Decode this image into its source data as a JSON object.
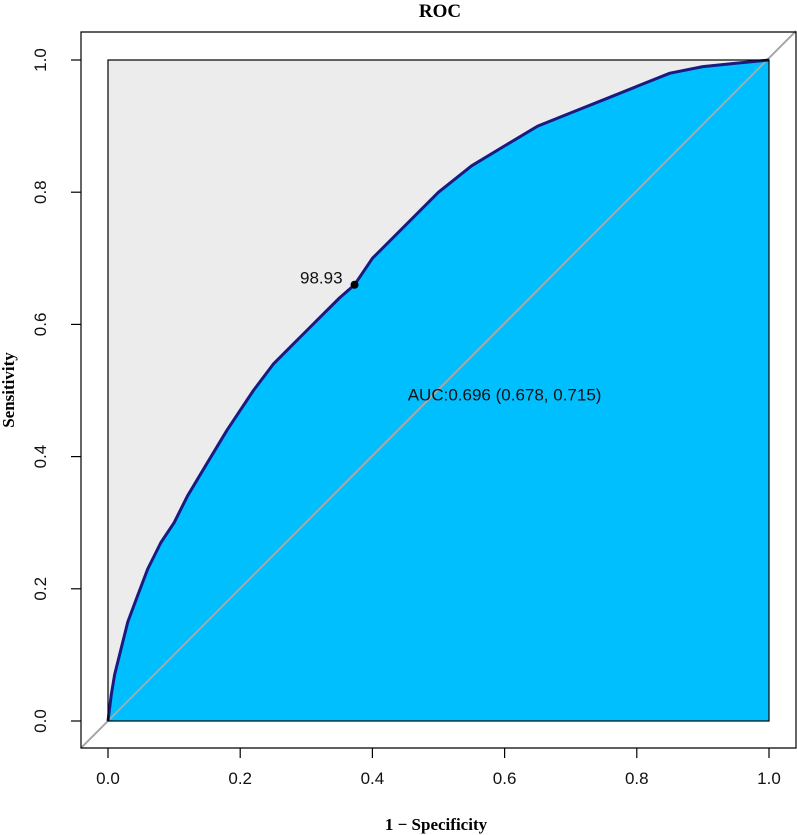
{
  "chart_data": {
    "type": "line",
    "title": "ROC",
    "xlabel": "1 − Specificity",
    "ylabel": "Sensitivity",
    "xlim": [
      0,
      1
    ],
    "ylim": [
      0,
      1
    ],
    "x_ticks": [
      "0.0",
      "0.2",
      "0.4",
      "0.6",
      "0.8",
      "1.0"
    ],
    "y_ticks": [
      "0.0",
      "0.2",
      "0.4",
      "0.6",
      "0.8",
      "1.0"
    ],
    "grid": false,
    "series": [
      {
        "x": [
          0,
          0.005,
          0.01,
          0.02,
          0.03,
          0.045,
          0.06,
          0.08,
          0.1,
          0.12,
          0.15,
          0.18,
          0.2,
          0.22,
          0.25,
          0.28,
          0.3,
          0.32,
          0.35,
          0.373,
          0.4,
          0.45,
          0.5,
          0.55,
          0.6,
          0.65,
          0.7,
          0.75,
          0.8,
          0.85,
          0.9,
          0.95,
          1.0
        ],
        "y": [
          0,
          0.04,
          0.07,
          0.11,
          0.15,
          0.19,
          0.23,
          0.27,
          0.3,
          0.34,
          0.39,
          0.44,
          0.47,
          0.5,
          0.54,
          0.57,
          0.59,
          0.61,
          0.64,
          0.66,
          0.7,
          0.75,
          0.8,
          0.84,
          0.87,
          0.9,
          0.92,
          0.94,
          0.96,
          0.98,
          0.99,
          0.995,
          1.0
        ]
      }
    ],
    "diagonal": {
      "x": [
        0,
        1
      ],
      "y": [
        0,
        1
      ]
    },
    "threshold_point": {
      "x": 0.373,
      "y": 0.66,
      "label": "98.93"
    },
    "auc_label": "AUC:0.696 (0.678, 0.715)",
    "colors": {
      "curve": "#1a1a80",
      "fill": "#00bfff",
      "background": "#ececec",
      "diagonal": "#a8a8a8",
      "point": "#000000"
    }
  }
}
